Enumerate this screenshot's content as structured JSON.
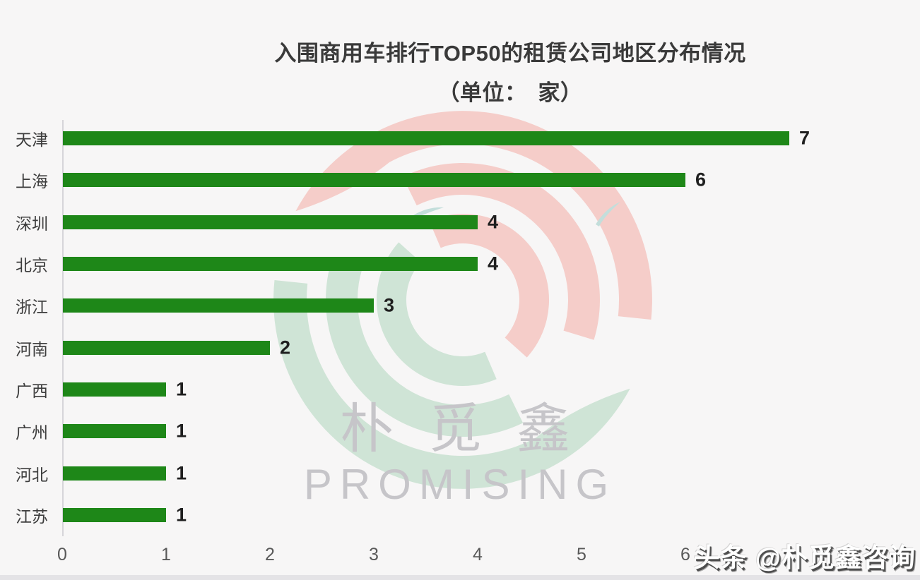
{
  "page": {
    "background": "#f7f6f6",
    "bottom_strip_color": "#e4e3e6"
  },
  "header": {
    "title_line1": "入围商用车排行TOP50的租赁公司地区分布情况",
    "title_line2": "（单位：　家）"
  },
  "chart_data": {
    "type": "bar",
    "orientation": "horizontal",
    "title": "入围商用车排行TOP50的租赁公司地区分布情况（单位：家）",
    "categories": [
      "天津",
      "上海",
      "深圳",
      "北京",
      "浙江",
      "河南",
      "广西",
      "广州",
      "河北",
      "江苏"
    ],
    "values": [
      7,
      6,
      4,
      4,
      3,
      2,
      1,
      1,
      1,
      1
    ],
    "x_ticks": [
      "0",
      "1",
      "2",
      "3",
      "4",
      "5",
      "6"
    ],
    "xlim": [
      0,
      7
    ],
    "grid": false,
    "legend": false,
    "bar_color": "#1e8718",
    "value_label_color": "#1f1f1f",
    "category_label_color": "#3d3d3d",
    "tick_label_color": "#595959",
    "axis_line_color": "#d6d5d9"
  },
  "watermark": {
    "logo_text_cn": "朴 觅 鑫",
    "logo_text_en": "PROMISING",
    "logo_pink": "#f5cdc9",
    "logo_green": "#cfe4d6",
    "logo_teal": "#c3dedb",
    "text_color": "#c6c5c9"
  },
  "footer": {
    "credit": "头条 @朴觅鑫咨询"
  }
}
